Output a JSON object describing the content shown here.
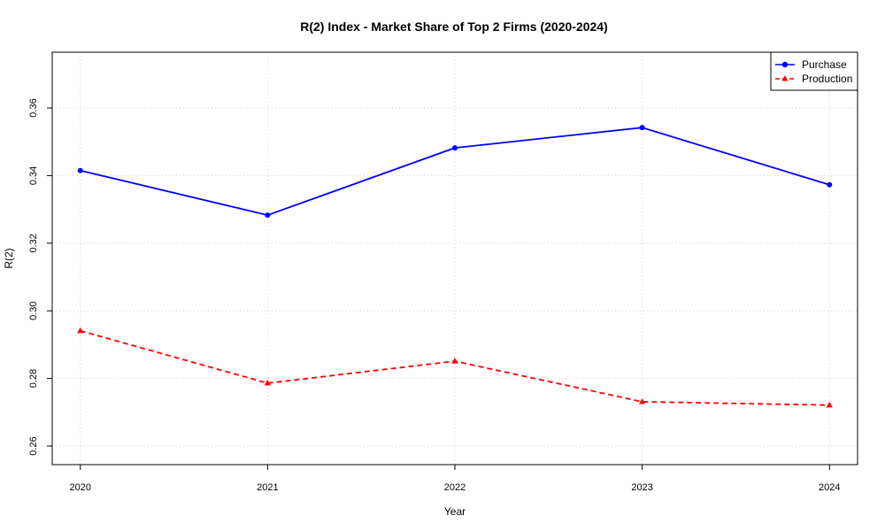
{
  "chart_data": {
    "type": "line",
    "title": "R(2) Index - Market Share of Top 2 Firms (2020-2024)",
    "xlabel": "Year",
    "ylabel": "R(2)",
    "x": [
      2020,
      2021,
      2022,
      2023,
      2024
    ],
    "x_tick_labels": [
      "2020",
      "2021",
      "2022",
      "2023",
      "2024"
    ],
    "xlim": [
      2019.85,
      2024.15
    ],
    "ylim": [
      0.2545,
      0.3765
    ],
    "y_ticks": [
      0.26,
      0.28,
      0.3,
      0.32,
      0.34,
      0.36
    ],
    "y_tick_labels": [
      "0.26",
      "0.28",
      "0.30",
      "0.32",
      "0.34",
      "0.36"
    ],
    "grid": true,
    "legend_position": "top-right",
    "series": [
      {
        "name": "Purchase",
        "values": [
          0.3415,
          0.3283,
          0.3482,
          0.3542,
          0.3373
        ],
        "color": "#0000ff",
        "line_style": "solid",
        "marker": "circle"
      },
      {
        "name": "Production",
        "values": [
          0.2941,
          0.2786,
          0.2851,
          0.2731,
          0.2721
        ],
        "color": "#ff0000",
        "line_style": "dashed",
        "marker": "triangle"
      }
    ]
  }
}
